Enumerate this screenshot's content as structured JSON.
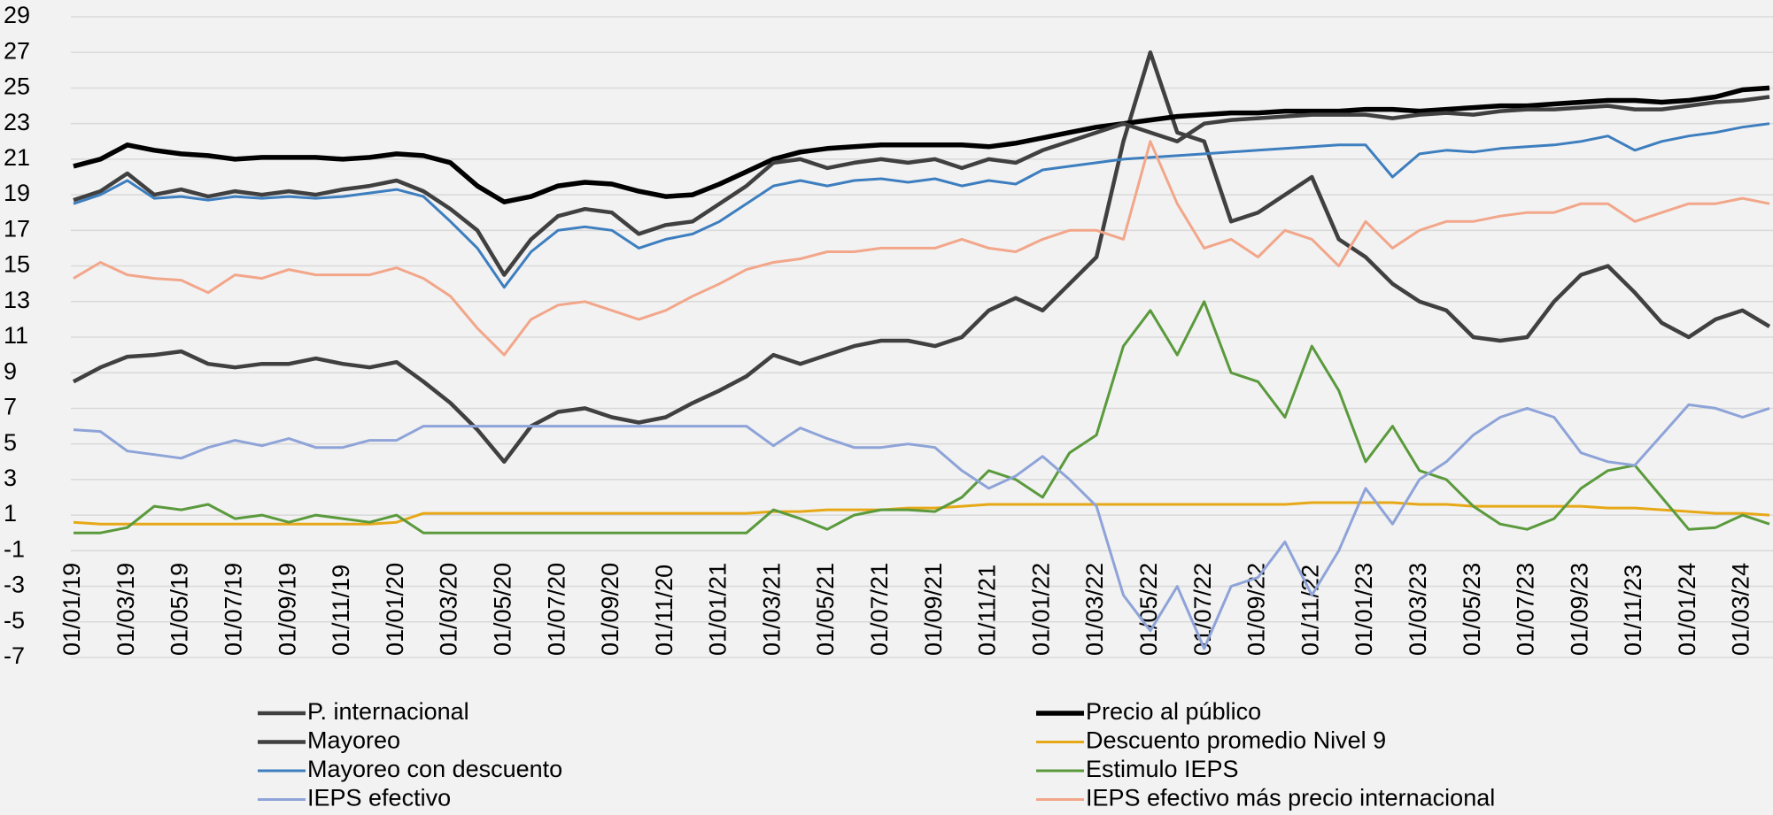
{
  "chart_data": {
    "type": "line",
    "x": [
      "01/01/19",
      "01/02/19",
      "01/03/19",
      "01/04/19",
      "01/05/19",
      "01/06/19",
      "01/07/19",
      "01/08/19",
      "01/09/19",
      "01/10/19",
      "01/11/19",
      "01/12/19",
      "01/01/20",
      "01/02/20",
      "01/03/20",
      "01/04/20",
      "01/05/20",
      "01/06/20",
      "01/07/20",
      "01/08/20",
      "01/09/20",
      "01/10/20",
      "01/11/20",
      "01/12/20",
      "01/01/21",
      "01/02/21",
      "01/03/21",
      "01/04/21",
      "01/05/21",
      "01/06/21",
      "01/07/21",
      "01/08/21",
      "01/09/21",
      "01/10/21",
      "01/11/21",
      "01/12/21",
      "01/01/22",
      "01/02/22",
      "01/03/22",
      "01/04/22",
      "01/05/22",
      "01/06/22",
      "01/07/22",
      "01/08/22",
      "01/09/22",
      "01/10/22",
      "01/11/22",
      "01/12/22",
      "01/01/23",
      "01/02/23",
      "01/03/23",
      "01/04/23",
      "01/05/23",
      "01/06/23",
      "01/07/23",
      "01/08/23",
      "01/09/23",
      "01/10/23",
      "01/11/23",
      "01/12/23",
      "01/01/24",
      "01/02/24",
      "01/03/24",
      "01/04/24"
    ],
    "series": [
      {
        "name": "P. internacional",
        "color": "#404040",
        "values": [
          8.5,
          9.3,
          9.9,
          10.0,
          10.2,
          9.5,
          9.3,
          9.5,
          9.5,
          9.8,
          9.5,
          9.3,
          9.6,
          8.5,
          7.3,
          5.8,
          4.0,
          6.0,
          6.8,
          7.0,
          6.5,
          6.2,
          6.5,
          7.3,
          8.0,
          8.8,
          10.0,
          9.5,
          10.0,
          10.5,
          10.8,
          10.8,
          10.5,
          11.0,
          12.5,
          13.2,
          12.5,
          14.0,
          15.5,
          22.0,
          27.0,
          22.5,
          22.0,
          17.5,
          18.0,
          19.0,
          20.0,
          16.5,
          15.5,
          14.0,
          13.0,
          12.5,
          11.0,
          10.8,
          11.0,
          13.0,
          14.5,
          15.0,
          13.5,
          11.8,
          11.0,
          12.0,
          12.5,
          11.6
        ]
      },
      {
        "name": "Precio al público",
        "color": "#000000",
        "values": [
          20.6,
          21.0,
          21.8,
          21.5,
          21.3,
          21.2,
          21.0,
          21.1,
          21.1,
          21.1,
          21.0,
          21.1,
          21.3,
          21.2,
          20.8,
          19.5,
          18.6,
          18.9,
          19.5,
          19.7,
          19.6,
          19.2,
          18.9,
          19.0,
          19.6,
          20.3,
          21.0,
          21.4,
          21.6,
          21.7,
          21.8,
          21.8,
          21.8,
          21.8,
          21.7,
          21.9,
          22.2,
          22.5,
          22.8,
          23.0,
          23.2,
          23.4,
          23.5,
          23.6,
          23.6,
          23.7,
          23.7,
          23.7,
          23.8,
          23.8,
          23.7,
          23.8,
          23.9,
          24.0,
          24.0,
          24.1,
          24.2,
          24.3,
          24.3,
          24.2,
          24.3,
          24.5,
          24.9,
          25.0
        ]
      },
      {
        "name": "Mayoreo",
        "color": "#404040",
        "values": [
          18.7,
          19.2,
          20.2,
          19.0,
          19.3,
          18.9,
          19.2,
          19.0,
          19.2,
          19.0,
          19.3,
          19.5,
          19.8,
          19.2,
          18.2,
          17.0,
          14.5,
          16.5,
          17.8,
          18.2,
          18.0,
          16.8,
          17.3,
          17.5,
          18.5,
          19.5,
          20.8,
          21.0,
          20.5,
          20.8,
          21.0,
          20.8,
          21.0,
          20.5,
          21.0,
          20.8,
          21.5,
          22.0,
          22.5,
          23.0,
          22.5,
          22.0,
          23.0,
          23.2,
          23.3,
          23.4,
          23.5,
          23.5,
          23.5,
          23.3,
          23.5,
          23.6,
          23.5,
          23.7,
          23.8,
          23.8,
          23.9,
          24.0,
          23.8,
          23.8,
          24.0,
          24.2,
          24.3,
          24.5
        ]
      },
      {
        "name": "Descuento promedio Nivel 9",
        "color": "#e6a817",
        "values": [
          0.6,
          0.5,
          0.5,
          0.5,
          0.5,
          0.5,
          0.5,
          0.5,
          0.5,
          0.5,
          0.5,
          0.5,
          0.6,
          1.1,
          1.1,
          1.1,
          1.1,
          1.1,
          1.1,
          1.1,
          1.1,
          1.1,
          1.1,
          1.1,
          1.1,
          1.1,
          1.2,
          1.2,
          1.3,
          1.3,
          1.3,
          1.4,
          1.4,
          1.5,
          1.6,
          1.6,
          1.6,
          1.6,
          1.6,
          1.6,
          1.6,
          1.6,
          1.6,
          1.6,
          1.6,
          1.6,
          1.7,
          1.7,
          1.7,
          1.7,
          1.6,
          1.6,
          1.5,
          1.5,
          1.5,
          1.5,
          1.5,
          1.4,
          1.4,
          1.3,
          1.2,
          1.1,
          1.1,
          1.0
        ]
      },
      {
        "name": "Mayoreo con descuento",
        "color": "#3d7ebf",
        "values": [
          18.5,
          19.0,
          19.8,
          18.8,
          18.9,
          18.7,
          18.9,
          18.8,
          18.9,
          18.8,
          18.9,
          19.1,
          19.3,
          18.9,
          17.5,
          16.0,
          13.8,
          15.8,
          17.0,
          17.2,
          17.0,
          16.0,
          16.5,
          16.8,
          17.5,
          18.5,
          19.5,
          19.8,
          19.5,
          19.8,
          19.9,
          19.7,
          19.9,
          19.5,
          19.8,
          19.6,
          20.4,
          20.6,
          20.8,
          21.0,
          21.1,
          21.2,
          21.3,
          21.4,
          21.5,
          21.6,
          21.7,
          21.8,
          21.8,
          20.0,
          21.3,
          21.5,
          21.4,
          21.6,
          21.7,
          21.8,
          22.0,
          22.3,
          21.5,
          22.0,
          22.3,
          22.5,
          22.8,
          23.0
        ]
      },
      {
        "name": "Estimulo IEPS",
        "color": "#5a9a3c",
        "values": [
          0,
          0,
          0.3,
          1.5,
          1.3,
          1.6,
          0.8,
          1.0,
          0.6,
          1.0,
          0.8,
          0.6,
          1.0,
          0,
          0,
          0,
          0,
          0,
          0,
          0,
          0,
          0,
          0,
          0,
          0,
          0,
          1.3,
          0.8,
          0.2,
          1.0,
          1.3,
          1.3,
          1.2,
          2.0,
          3.5,
          3.0,
          2.0,
          4.5,
          5.5,
          10.5,
          12.5,
          10.0,
          13.0,
          9.0,
          8.5,
          6.5,
          10.5,
          8.0,
          4.0,
          6.0,
          3.5,
          3.0,
          1.5,
          0.5,
          0.2,
          0.8,
          2.5,
          3.5,
          3.8,
          2.0,
          0.2,
          0.3,
          1.0,
          0.5
        ]
      },
      {
        "name": "IEPS efectivo",
        "color": "#8ea3d8",
        "values": [
          5.8,
          5.7,
          4.6,
          4.4,
          4.2,
          4.8,
          5.2,
          4.9,
          5.3,
          4.8,
          4.8,
          5.2,
          5.2,
          6.0,
          6.0,
          6.0,
          6.0,
          6.0,
          6.0,
          6.0,
          6.0,
          6.0,
          6.0,
          6.0,
          6.0,
          6.0,
          4.9,
          5.9,
          5.3,
          4.8,
          4.8,
          5.0,
          4.8,
          3.5,
          2.5,
          3.2,
          4.3,
          3.0,
          1.5,
          -3.5,
          -5.5,
          -3.0,
          -6.5,
          -3.0,
          -2.5,
          -0.5,
          -3.5,
          -1.0,
          2.5,
          0.5,
          3.0,
          4.0,
          5.5,
          6.5,
          7.0,
          6.5,
          4.5,
          4.0,
          3.8,
          5.5,
          7.2,
          7.0,
          6.5,
          7.0
        ]
      },
      {
        "name": "IEPS efectivo más precio internacional",
        "color": "#f2a68a",
        "values": [
          14.3,
          15.2,
          14.5,
          14.3,
          14.2,
          13.5,
          14.5,
          14.3,
          14.8,
          14.5,
          14.5,
          14.5,
          14.9,
          14.3,
          13.3,
          11.5,
          10.0,
          12.0,
          12.8,
          13.0,
          12.5,
          12.0,
          12.5,
          13.3,
          14.0,
          14.8,
          15.2,
          15.4,
          15.8,
          15.8,
          16.0,
          16.0,
          16.0,
          16.5,
          16.0,
          15.8,
          16.5,
          17.0,
          17.0,
          16.5,
          22.0,
          18.5,
          16.0,
          16.5,
          15.5,
          17.0,
          16.5,
          15.0,
          17.5,
          16.0,
          17.0,
          17.5,
          17.5,
          17.8,
          18.0,
          18.0,
          18.5,
          18.5,
          17.5,
          18.0,
          18.5,
          18.5,
          18.8,
          18.5
        ]
      }
    ],
    "ylim": [
      -7,
      29
    ],
    "yticks": [
      -7,
      -5,
      -3,
      -1,
      1,
      3,
      5,
      7,
      9,
      11,
      13,
      15,
      17,
      19,
      21,
      23,
      25,
      27,
      29
    ],
    "grid": true
  }
}
